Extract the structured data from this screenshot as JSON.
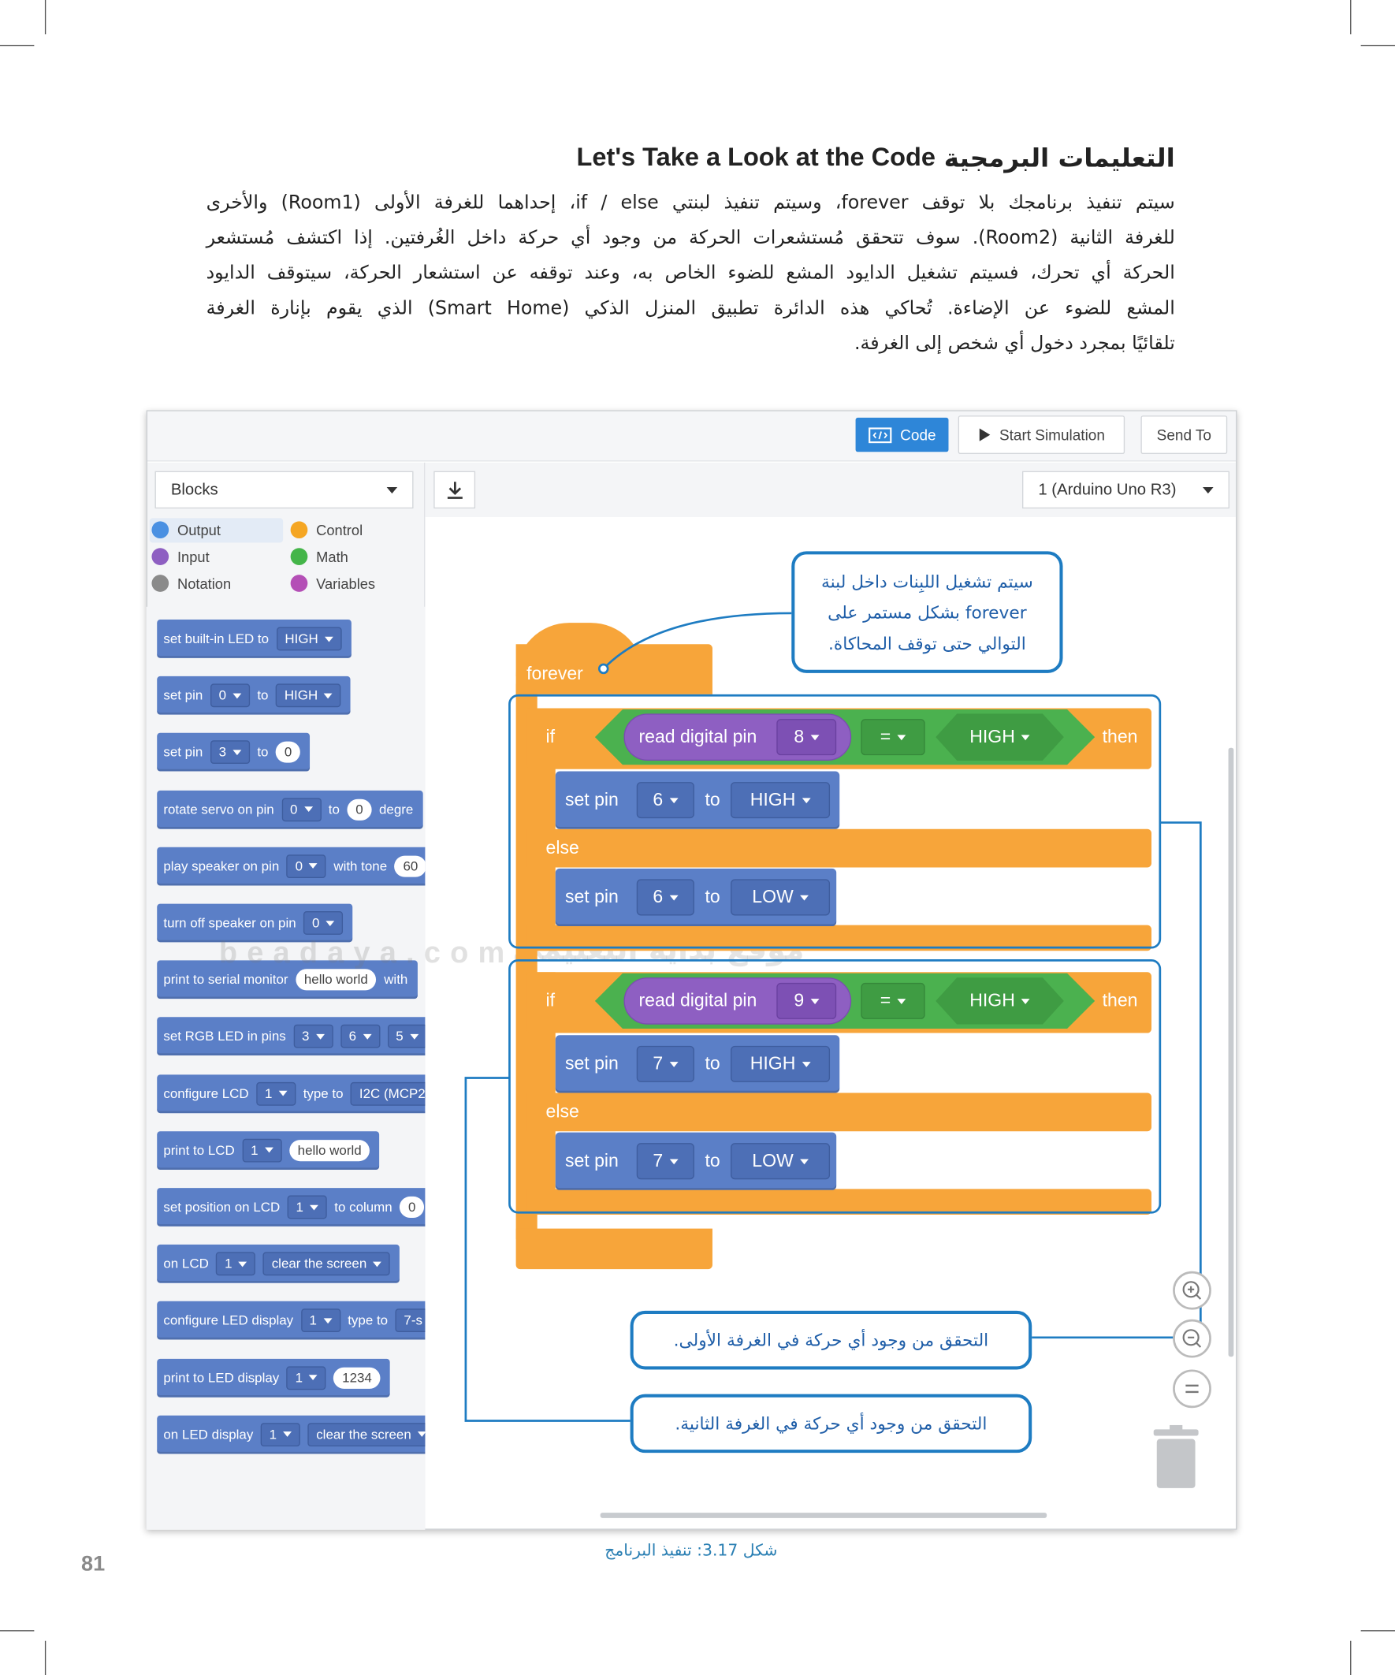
{
  "header": {
    "title_ar": "التعليمات البرمجية",
    "title_en": "Let's Take a Look at the Code"
  },
  "paragraph": {
    "lines": [
      "سيتم تنفيذ برنامجك بلا توقف forever، وسيتم تنفيذ لبنتي if / else، إحداهما للغرفة الأولى (Room1) والأخرى",
      "للغرفة الثانية (Room2). سوف تتحقق مُستشعرات الحركة من وجود أي حركة داخل الغُرفتين. إذا اكتشف مُستشعر",
      "الحركة أي تحرك، فسيتم تشغيل الدايود المشع للضوء الخاص به، وعند توقفه عن استشعار الحركة، سيتوقف الدايود",
      "المشع للضوء عن الإضاءة. تُحاكي هذه الدائرة تطبيق المنزل الذكي (Smart Home) الذي يقوم بإنارة الغرفة",
      "تلقائيًا بمجرد دخول أي شخص إلى الغرفة."
    ]
  },
  "screenshot": {
    "toolbar": {
      "code": "Code",
      "start_simulation": "Start Simulation",
      "send_to": "Send To"
    },
    "blocks_dropdown": "Blocks",
    "board_dropdown": "1 (Arduino Uno R3)",
    "categories": [
      {
        "name": "Output",
        "color": "#4a90e2"
      },
      {
        "name": "Control",
        "color": "#f5a623"
      },
      {
        "name": "Input",
        "color": "#8e5fc2"
      },
      {
        "name": "Math",
        "color": "#44b549"
      },
      {
        "name": "Notation",
        "color": "#8a8a8a"
      },
      {
        "name": "Variables",
        "color": "#b44fb6"
      }
    ],
    "palette": [
      {
        "parts": [
          {
            "text": "set built-in LED to"
          },
          {
            "dropdown": "HIGH"
          }
        ]
      },
      {
        "parts": [
          {
            "text": "set pin"
          },
          {
            "dropdown": "0"
          },
          {
            "text": "to"
          },
          {
            "dropdown": "HIGH"
          }
        ]
      },
      {
        "parts": [
          {
            "text": "set pin"
          },
          {
            "dropdown": "3"
          },
          {
            "text": "to"
          },
          {
            "field": "0"
          }
        ]
      },
      {
        "parts": [
          {
            "text": "rotate servo on pin"
          },
          {
            "dropdown": "0"
          },
          {
            "text": "to"
          },
          {
            "field": "0"
          },
          {
            "text": "degre"
          }
        ]
      },
      {
        "parts": [
          {
            "text": "play speaker on pin"
          },
          {
            "dropdown": "0"
          },
          {
            "text": "with tone"
          },
          {
            "field": "60"
          }
        ]
      },
      {
        "parts": [
          {
            "text": "turn off speaker on pin"
          },
          {
            "dropdown": "0"
          }
        ]
      },
      {
        "parts": [
          {
            "text": "print to serial monitor"
          },
          {
            "field": "hello world"
          },
          {
            "text": "with"
          }
        ]
      },
      {
        "parts": [
          {
            "text": "set RGB LED in pins"
          },
          {
            "dropdown": "3"
          },
          {
            "dropdown": "6"
          },
          {
            "dropdown": "5"
          }
        ]
      },
      {
        "parts": [
          {
            "text": "configure LCD"
          },
          {
            "dropdown": "1"
          },
          {
            "text": "type to"
          },
          {
            "dropdown": "I2C (MCP2"
          }
        ]
      },
      {
        "parts": [
          {
            "text": "print to LCD"
          },
          {
            "dropdown": "1"
          },
          {
            "field": "hello world"
          }
        ]
      },
      {
        "parts": [
          {
            "text": "set position on LCD"
          },
          {
            "dropdown": "1"
          },
          {
            "text": "to column"
          },
          {
            "field": "0"
          }
        ]
      },
      {
        "parts": [
          {
            "text": "on LCD"
          },
          {
            "dropdown": "1"
          },
          {
            "dropdown": "clear the screen"
          }
        ]
      },
      {
        "parts": [
          {
            "text": "configure LED display"
          },
          {
            "dropdown": "1"
          },
          {
            "text": "type to"
          },
          {
            "dropdown": "7-s"
          }
        ]
      },
      {
        "parts": [
          {
            "text": "print to LED display"
          },
          {
            "dropdown": "1"
          },
          {
            "field": "1234"
          }
        ]
      },
      {
        "parts": [
          {
            "text": "on LED display"
          },
          {
            "dropdown": "1"
          },
          {
            "dropdown": "clear the screen"
          }
        ]
      }
    ],
    "program": {
      "forever": "forever",
      "blocks": [
        {
          "if": "if",
          "read": "read digital pin",
          "pin": "8",
          "op": "=",
          "level": "HIGH",
          "then": "then",
          "set_true": {
            "label": "set pin",
            "pin": "6",
            "to": "to",
            "value": "HIGH"
          },
          "else": "else",
          "set_false": {
            "label": "set pin",
            "pin": "6",
            "to": "to",
            "value": "LOW"
          }
        },
        {
          "if": "if",
          "read": "read digital pin",
          "pin": "9",
          "op": "=",
          "level": "HIGH",
          "then": "then",
          "set_true": {
            "label": "set pin",
            "pin": "7",
            "to": "to",
            "value": "HIGH"
          },
          "else": "else",
          "set_false": {
            "label": "set pin",
            "pin": "7",
            "to": "to",
            "value": "LOW"
          }
        }
      ]
    },
    "callouts": [
      {
        "lines": [
          "سيتم تشغيل اللبِنات داخل لبنة",
          "forever بشكل مستمر على",
          "التوالي حتى توقف المحاكاة."
        ]
      },
      {
        "lines": [
          "التحقق من وجود أي حركة في الغرفة الأولى."
        ]
      },
      {
        "lines": [
          "التحقق من وجود أي حركة في الغرفة الثانية."
        ]
      }
    ]
  },
  "watermark": {
    "site": "beadaya.com",
    "arabic": "موقع بداية التعليمي"
  },
  "caption": "شكل 3.17: تنفيذ البرنامج",
  "page_number": "81"
}
